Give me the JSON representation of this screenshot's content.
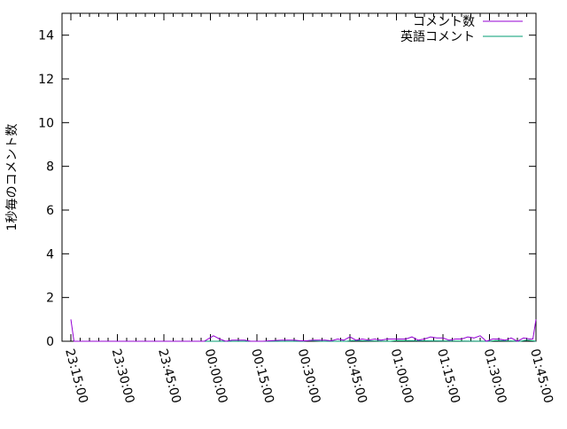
{
  "chart_data": {
    "type": "line",
    "title": "",
    "xlabel": "",
    "ylabel": "1秒毎のコメント数",
    "ylim": [
      0,
      15
    ],
    "xlim": [
      "23:15:00",
      "01:45:00"
    ],
    "yticks": [
      "0",
      "2",
      "4",
      "6",
      "8",
      "10",
      "12",
      "14"
    ],
    "xticks": [
      "23:15:00",
      "23:30:00",
      "23:45:00",
      "00:00:00",
      "00:15:00",
      "00:30:00",
      "00:45:00",
      "01:00:00",
      "01:15:00",
      "01:30:00",
      "01:45:00"
    ],
    "grid": false,
    "legend_position": "top-right",
    "series": [
      {
        "name": "コメント数",
        "color": "#9400d3",
        "x": [
          "23:15",
          "23:16",
          "23:55",
          "23:58",
          "00:01",
          "00:03",
          "00:05",
          "00:07",
          "00:11",
          "00:13",
          "00:17",
          "00:19",
          "00:23",
          "00:27",
          "00:29",
          "00:31",
          "00:33",
          "00:37",
          "00:39",
          "00:41",
          "00:43",
          "00:45",
          "00:47",
          "00:49",
          "00:51",
          "00:53",
          "00:55",
          "00:57",
          "00:59",
          "01:01",
          "01:03",
          "01:05",
          "01:07",
          "01:09",
          "01:11",
          "01:13",
          "01:15",
          "01:17",
          "01:19",
          "01:21",
          "01:23",
          "01:25",
          "01:27",
          "01:29",
          "01:31",
          "01:33",
          "01:35",
          "01:37",
          "01:39",
          "01:41",
          "01:43",
          "01:44",
          "01:45"
        ],
        "y": [
          1.0,
          0,
          0,
          0,
          0.25,
          0.1,
          0,
          0.05,
          0.05,
          0,
          0,
          0.02,
          0.05,
          0.05,
          0.02,
          0.02,
          0.05,
          0.05,
          0.02,
          0.1,
          0.05,
          0.2,
          0.05,
          0.1,
          0.05,
          0.1,
          0.05,
          0.1,
          0.1,
          0.1,
          0.1,
          0.2,
          0.05,
          0.1,
          0.2,
          0.15,
          0.15,
          0.05,
          0.1,
          0.1,
          0.2,
          0.15,
          0.25,
          0,
          0.1,
          0.1,
          0.05,
          0.15,
          0,
          0.15,
          0.1,
          0.1,
          1.0
        ]
      },
      {
        "name": "英語コメント",
        "color": "#009e73",
        "x": [
          "23:55",
          "00:30",
          "00:32",
          "00:36",
          "00:44",
          "00:46",
          "00:58",
          "01:00",
          "01:30",
          "01:32",
          "01:40",
          "01:42",
          "01:44",
          "01:45"
        ],
        "y": [
          0,
          0,
          0.03,
          0,
          0,
          0.03,
          0,
          0.03,
          0,
          0.03,
          0,
          0.05,
          0.02,
          0
        ]
      }
    ]
  }
}
